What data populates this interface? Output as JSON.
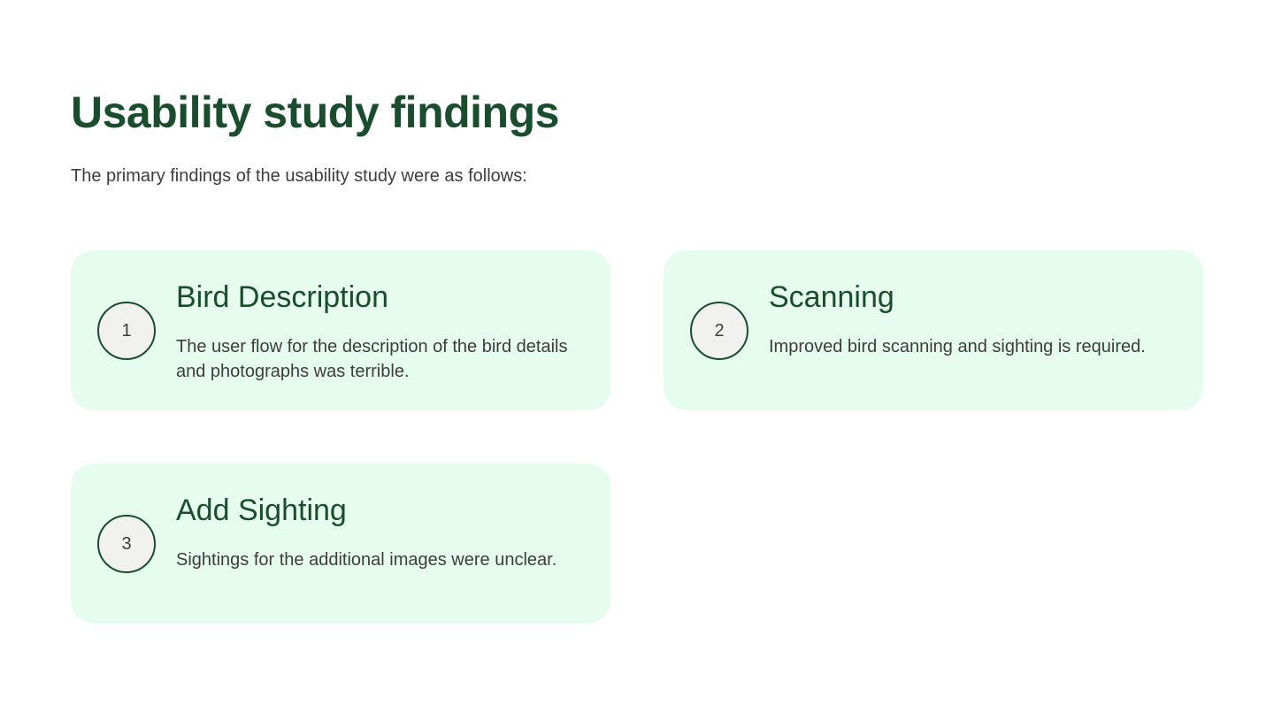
{
  "header": {
    "title": "Usability study findings",
    "subtitle": "The primary findings of the usability study were as follows:"
  },
  "findings": [
    {
      "number": "1",
      "title": "Bird Description",
      "text": "The user flow for the description of the bird details and photographs was terrible."
    },
    {
      "number": "2",
      "title": "Scanning",
      "text": "Improved bird scanning and sighting is required."
    },
    {
      "number": "3",
      "title": "Add Sighting",
      "text": "Sightings for the additional images were unclear."
    }
  ],
  "colors": {
    "heading": "#1a4d2e",
    "card_background": "#e6fcef",
    "body_text": "#3d3d3d"
  }
}
